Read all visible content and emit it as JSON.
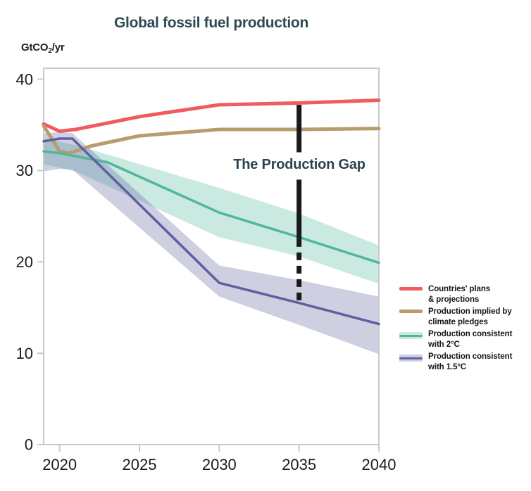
{
  "colors": {
    "title_text": "#2b4a54",
    "annotation_text": "#2b4350",
    "axis": "#c9c9c9",
    "tick_text": "#1c1c1c",
    "gap_line": "#1a1a1a",
    "legend_text": "#161616",
    "background": "#ffffff"
  },
  "y_axis_unit": {
    "prefix": "GtCO",
    "sub": "2",
    "suffix": "/yr"
  },
  "chart_data": {
    "type": "line",
    "title": "Global fossil fuel production",
    "ylabel": "GtCO2/yr",
    "xlabel": "",
    "x_range": [
      2019,
      2040
    ],
    "y_range": [
      0,
      41.2
    ],
    "x_ticks": [
      2020,
      2025,
      2030,
      2035,
      2040
    ],
    "y_ticks": [
      0,
      10,
      20,
      30,
      40
    ],
    "grid": false,
    "legend_position": "right-middle",
    "annotation": {
      "label": "The Production Gap",
      "x": 2035,
      "segments": [
        {
          "from": 37.2,
          "to": 32.0,
          "style": "solid"
        },
        {
          "from": 29.0,
          "to": 22.5,
          "style": "solid"
        },
        {
          "from": 22.5,
          "to": 15.6,
          "style": "dashed"
        }
      ]
    },
    "series": [
      {
        "name": "countries-plans",
        "label_lines": [
          "Countries' plans",
          "& projections"
        ],
        "color": "#f15b5f",
        "line_width": 5,
        "points": [
          [
            2019,
            35.1
          ],
          [
            2020,
            34.3
          ],
          [
            2021,
            34.5
          ],
          [
            2025,
            35.9
          ],
          [
            2030,
            37.2
          ],
          [
            2035,
            37.4
          ],
          [
            2040,
            37.7
          ]
        ]
      },
      {
        "name": "climate-pledges",
        "label_lines": [
          "Production implied by",
          "climate pledges"
        ],
        "color": "#b79c6d",
        "line_width": 5,
        "points": [
          [
            2019,
            34.9
          ],
          [
            2020,
            32.1
          ],
          [
            2020.6,
            31.9
          ],
          [
            2022,
            32.7
          ],
          [
            2025,
            33.8
          ],
          [
            2030,
            34.5
          ],
          [
            2035,
            34.5
          ],
          [
            2040,
            34.6
          ]
        ]
      },
      {
        "name": "consistent-2c",
        "label_lines": [
          "Production consistent",
          "with 2°C"
        ],
        "color": "#4fb79c",
        "band_color": "rgba(79,183,156,0.30)",
        "line_width": 3.5,
        "points": [
          [
            2019,
            32.1
          ],
          [
            2020,
            31.9
          ],
          [
            2023,
            30.9
          ],
          [
            2030,
            25.4
          ],
          [
            2035,
            22.7
          ],
          [
            2040,
            19.9
          ]
        ],
        "band": [
          [
            2019,
            30.7,
            33.5
          ],
          [
            2021,
            29.9,
            32.8
          ],
          [
            2030,
            22.7,
            28.1
          ],
          [
            2035,
            20.6,
            25.3
          ],
          [
            2040,
            17.6,
            21.8
          ]
        ]
      },
      {
        "name": "consistent-1p5c",
        "label_lines": [
          "Production consistent",
          "with 1.5°C"
        ],
        "color": "#5f609f",
        "band_color": "rgba(95,96,159,0.30)",
        "line_width": 3.5,
        "points": [
          [
            2019,
            33.2
          ],
          [
            2020,
            33.5
          ],
          [
            2020.8,
            33.5
          ],
          [
            2030,
            17.7
          ],
          [
            2035,
            15.5
          ],
          [
            2040,
            13.2
          ]
        ],
        "band": [
          [
            2019,
            29.9,
            34.1
          ],
          [
            2020,
            30.2,
            34.2
          ],
          [
            2020.8,
            30.1,
            34.1
          ],
          [
            2030,
            16.2,
            19.6
          ],
          [
            2035,
            13.1,
            18.0
          ],
          [
            2040,
            9.9,
            16.2
          ]
        ]
      }
    ]
  }
}
